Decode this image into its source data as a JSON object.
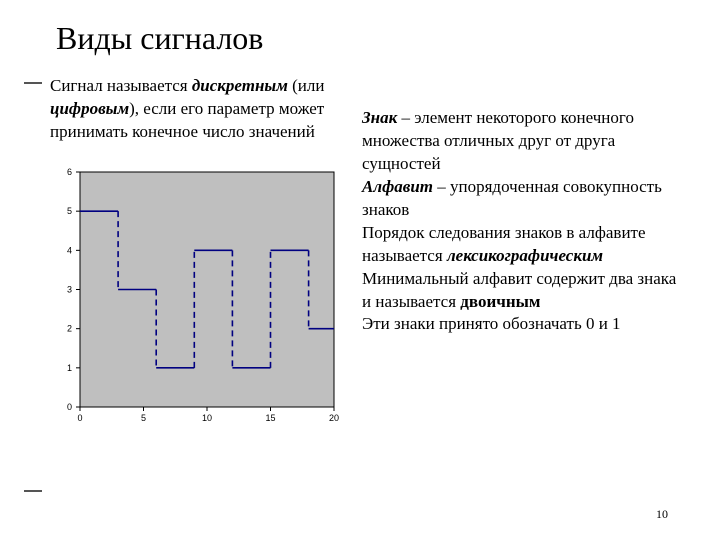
{
  "title": "Виды сигналов",
  "left": {
    "prefix": "Сигнал называется ",
    "term1": "дискретным",
    "mid1": " (или ",
    "term2": "цифровым",
    "suffix": "), если его параметр может принимать конечное число значений"
  },
  "right": {
    "r1a": "Знак",
    "r1b": " – элемент некоторого конечного множества отличных друг от друга сущностей",
    "r2a": "Алфавит",
    "r2b": " – упорядоченная совокупность знаков",
    "r3a": "Порядок следования знаков в алфавите называется ",
    "r3b": "лексикографическим",
    "r4a": "Минимальный алфавит содержит два знака и называется ",
    "r4b": "двоичным",
    "r5": "Эти знаки принято обозначать 0 и 1"
  },
  "page_number": "10",
  "chart": {
    "type": "step",
    "background": "#ffffff",
    "plot_bg": "#bfbfbf",
    "signal_color": "#000080",
    "vertical_dash_color": "#000080",
    "dash_pattern": "6 4",
    "axis_color": "#000000",
    "line_width": 1.6,
    "xlim": [
      0,
      20
    ],
    "ylim": [
      0,
      6
    ],
    "xticks": [
      0,
      5,
      10,
      15,
      20
    ],
    "yticks": [
      0,
      1,
      2,
      3,
      4,
      5,
      6
    ],
    "tick_fontsize": 9,
    "points": [
      {
        "x": 0,
        "y": 5
      },
      {
        "x": 3,
        "y": 5
      },
      {
        "x": 3,
        "y": 3
      },
      {
        "x": 6,
        "y": 3
      },
      {
        "x": 6,
        "y": 1
      },
      {
        "x": 9,
        "y": 1
      },
      {
        "x": 9,
        "y": 4
      },
      {
        "x": 12,
        "y": 4
      },
      {
        "x": 12,
        "y": 1
      },
      {
        "x": 15,
        "y": 1
      },
      {
        "x": 15,
        "y": 4
      },
      {
        "x": 18,
        "y": 4
      },
      {
        "x": 18,
        "y": 2
      },
      {
        "x": 20,
        "y": 2
      }
    ]
  }
}
